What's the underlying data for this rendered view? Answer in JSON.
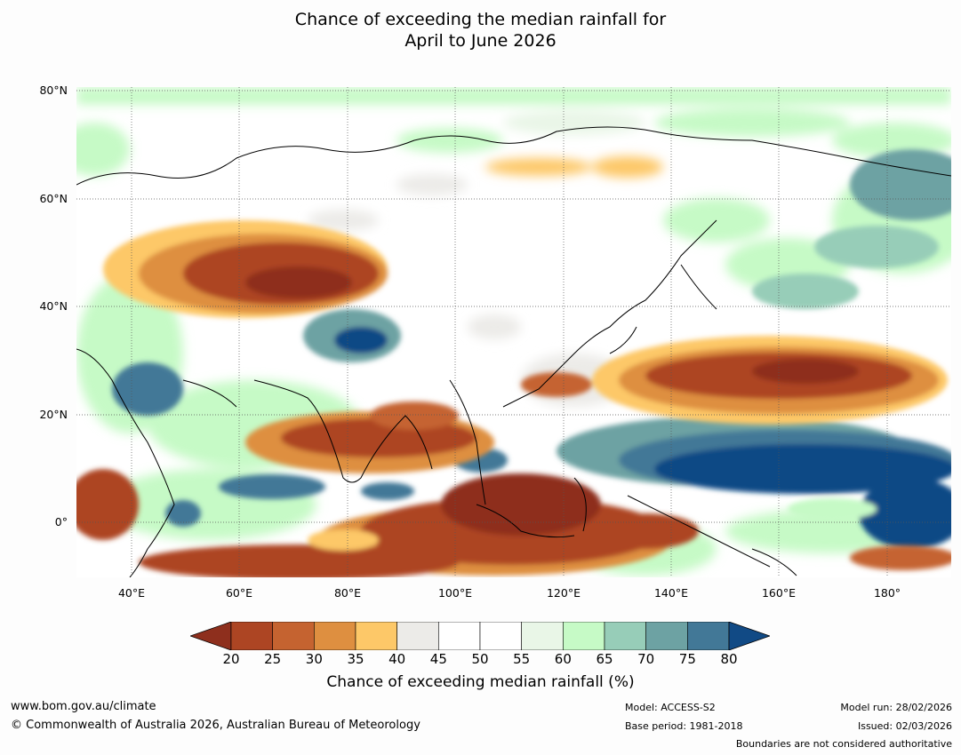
{
  "title_line1": "Chance of exceeding the median rainfall for",
  "title_line2": "April to June 2026",
  "lat_labels": [
    "80°N",
    "60°N",
    "40°N",
    "20°N",
    "0°"
  ],
  "lon_labels": [
    "40°E",
    "60°E",
    "80°E",
    "100°E",
    "120°E",
    "140°E",
    "160°E",
    "180°"
  ],
  "colorbar": {
    "ticks": [
      "20",
      "25",
      "30",
      "35",
      "40",
      "45",
      "50",
      "55",
      "60",
      "65",
      "70",
      "75",
      "80"
    ],
    "colors": [
      "#8e2f1d",
      "#ad4523",
      "#c56330",
      "#de8f40",
      "#fdc868",
      "#ecebe8",
      "#ffffff",
      "#ffffff",
      "#e9f6e7",
      "#c6fac6",
      "#97cdb8",
      "#6da2a3",
      "#427897",
      "#114a85"
    ],
    "label": "Chance of exceeding median rainfall (%)"
  },
  "footer": {
    "url": "www.bom.gov.au/climate",
    "copyright": "© Commonwealth of Australia 2026, Australian Bureau of Meteorology",
    "model": "Model: ACCESS-S2",
    "base_period": "Base period: 1981-2018",
    "model_run": "Model run: 28/02/2026",
    "issued": "Issued: 02/03/2026",
    "disclaimer": "Boundaries are not considered authoritative"
  }
}
